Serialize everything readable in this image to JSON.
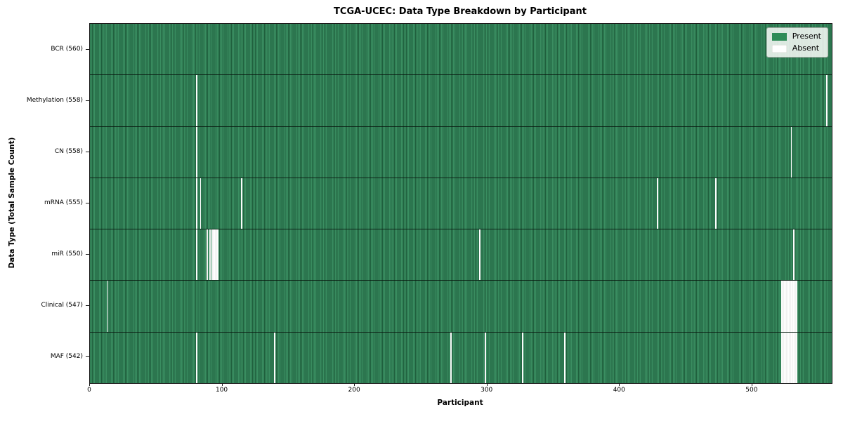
{
  "chart_data": {
    "type": "heatmap",
    "title": "TCGA-UCEC: Data Type Breakdown by Participant",
    "xlabel": "Participant",
    "ylabel": "Data Type (Total Sample Count)",
    "x_ticks": [
      0,
      100,
      200,
      300,
      400,
      500
    ],
    "x_max": 560,
    "grid": false,
    "legend_position": "upper right",
    "legend": [
      {
        "label": "Present",
        "color": "#2e8b57"
      },
      {
        "label": "Absent",
        "color": "#ffffff"
      }
    ],
    "rows": [
      {
        "label": "BCR (560)",
        "name": "BCR",
        "present_count": 560,
        "absent_participants": []
      },
      {
        "label": "Methylation (558)",
        "name": "Methylation",
        "present_count": 558,
        "absent_participants": [
          80,
          556
        ]
      },
      {
        "label": "CN (558)",
        "name": "CN",
        "present_count": 558,
        "absent_participants": [
          80,
          529
        ]
      },
      {
        "label": "mRNA (555)",
        "name": "mRNA",
        "present_count": 555,
        "absent_participants": [
          80,
          83,
          114,
          428,
          472
        ]
      },
      {
        "label": "miR (550)",
        "name": "miR",
        "present_count": 550,
        "absent_participants": [
          80,
          88,
          90,
          92,
          93,
          94,
          95,
          96,
          294,
          531
        ]
      },
      {
        "label": "Clinical (547)",
        "name": "Clinical",
        "present_count": 547,
        "absent_participants": [
          13,
          522,
          523,
          524,
          525,
          526,
          527,
          528,
          529,
          530,
          531,
          532,
          533
        ]
      },
      {
        "label": "MAF (542)",
        "name": "MAF",
        "present_count": 542,
        "absent_participants": [
          80,
          139,
          272,
          298,
          326,
          358,
          522,
          523,
          524,
          525,
          526,
          527,
          528,
          529,
          530,
          531,
          532,
          533
        ]
      }
    ]
  }
}
